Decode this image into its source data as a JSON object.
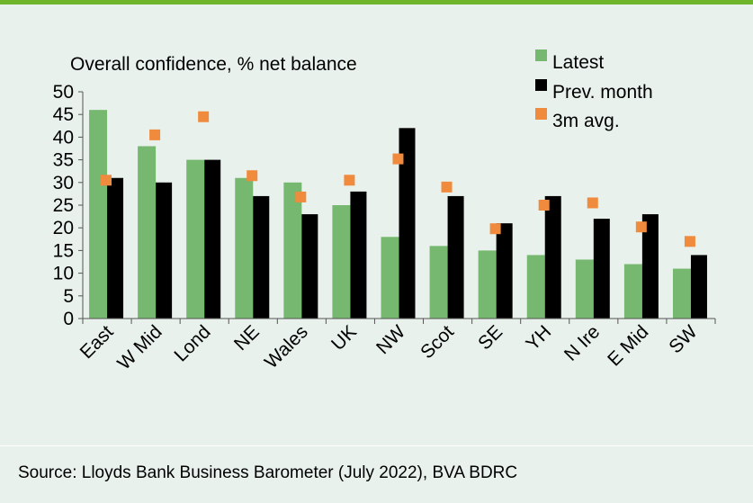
{
  "source": "Source: Lloyds Bank Business Barometer (July 2022), BVA BDRC",
  "colors": {
    "latest": "#76b86f",
    "prev": "#000000",
    "avg": "#f08a3c",
    "accent": "#6fb52c",
    "background": "#e8f1ec"
  },
  "chart_data": {
    "type": "bar",
    "title": "Overall confidence, % net balance",
    "categories": [
      "East",
      "W Mid",
      "Lond",
      "NE",
      "Wales",
      "UK",
      "NW",
      "Scot",
      "SE",
      "YH",
      "N Ire",
      "E Mid",
      "SW"
    ],
    "ylim": [
      0,
      50
    ],
    "yticks": [
      0,
      5,
      10,
      15,
      20,
      25,
      30,
      35,
      40,
      45,
      50
    ],
    "legend_position": "top-right",
    "grid": false,
    "series": [
      {
        "name": "Latest",
        "kind": "bar",
        "values": [
          46,
          38,
          35,
          31,
          30,
          25,
          18,
          16,
          15,
          14,
          13,
          12,
          11
        ]
      },
      {
        "name": "Prev. month",
        "kind": "bar",
        "values": [
          31,
          30,
          35,
          27,
          23,
          28,
          42,
          27,
          21,
          27,
          22,
          23,
          14
        ]
      },
      {
        "name": "3m avg.",
        "kind": "marker",
        "values": [
          30.5,
          40.5,
          44.5,
          31.5,
          26.8,
          30.5,
          35.2,
          29,
          19.8,
          25,
          25.5,
          20.2,
          17
        ]
      }
    ]
  }
}
